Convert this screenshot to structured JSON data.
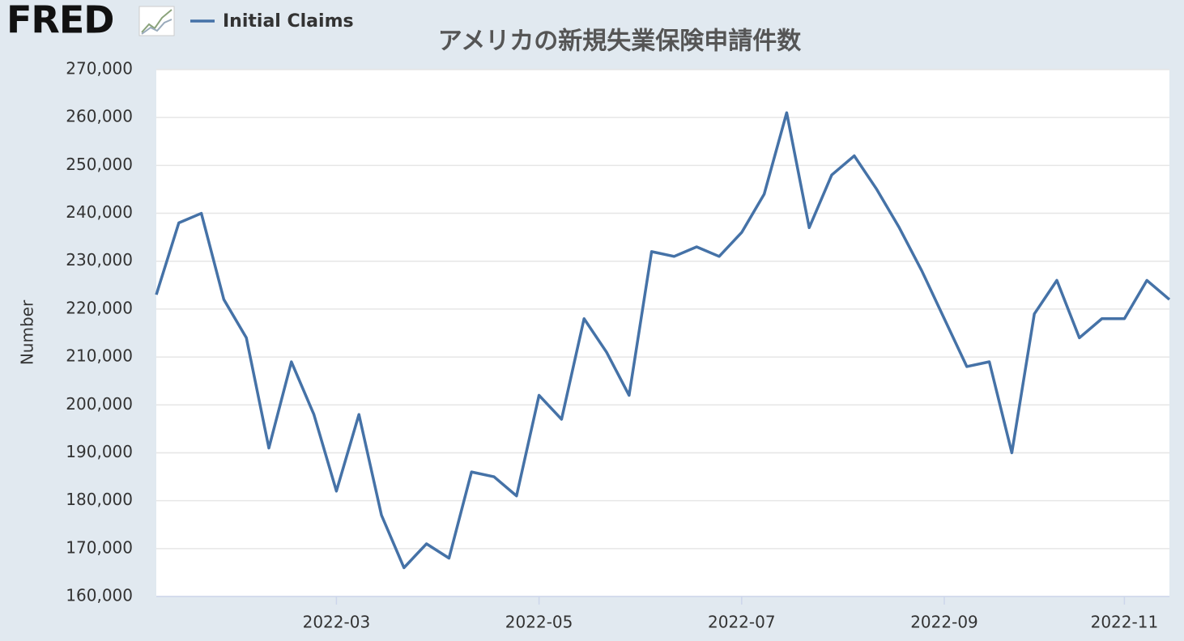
{
  "logo": "FRED",
  "chart_data": {
    "type": "line",
    "title": "アメリカの新規失業保険申請件数",
    "y_label": "Number",
    "legend": "top-left",
    "grid": true,
    "categories": [
      null,
      null,
      null,
      null,
      null,
      null,
      null,
      null,
      "2022-03",
      null,
      null,
      null,
      null,
      null,
      null,
      null,
      null,
      "2022-05",
      null,
      null,
      null,
      null,
      null,
      null,
      null,
      null,
      "2022-07",
      null,
      null,
      null,
      null,
      null,
      null,
      null,
      null,
      "2022-09",
      null,
      null,
      null,
      null,
      null,
      null,
      null,
      "2022-11",
      null,
      null
    ],
    "series": [
      {
        "name": "Initial Claims",
        "color": "#4572a7",
        "values": [
          223000,
          238000,
          240000,
          222000,
          214000,
          191000,
          209000,
          198000,
          182000,
          198000,
          177000,
          166000,
          171000,
          168000,
          186000,
          185000,
          181000,
          202000,
          197000,
          218000,
          211000,
          202000,
          232000,
          231000,
          233000,
          231000,
          236000,
          244000,
          261000,
          237000,
          248000,
          252000,
          245000,
          237000,
          228000,
          218000,
          208000,
          209000,
          190000,
          219000,
          226000,
          214000,
          218000,
          218000,
          226000,
          222000
        ]
      }
    ],
    "ylim": [
      160000,
      270000
    ],
    "yticks": [
      {
        "value": 160000,
        "label": "160,000"
      },
      {
        "value": 170000,
        "label": "170,000"
      },
      {
        "value": 180000,
        "label": "180,000"
      },
      {
        "value": 190000,
        "label": "190,000"
      },
      {
        "value": 200000,
        "label": "200,000"
      },
      {
        "value": 210000,
        "label": "210,000"
      },
      {
        "value": 220000,
        "label": "220,000"
      },
      {
        "value": 230000,
        "label": "230,000"
      },
      {
        "value": 240000,
        "label": "240,000"
      },
      {
        "value": 250000,
        "label": "250,000"
      },
      {
        "value": 260000,
        "label": "260,000"
      },
      {
        "value": 270000,
        "label": "270,000"
      }
    ]
  }
}
